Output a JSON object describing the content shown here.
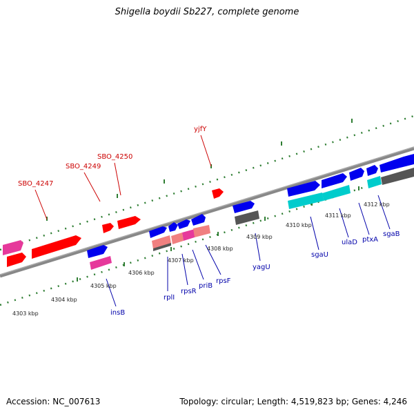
{
  "title": "Shigella boydii Sb227, complete genome",
  "accession_text": "Accession: NC_007613",
  "topology_text": "Topology: circular; Length: 4,519,823 bp; Genes: 4,246",
  "colors": {
    "backbone": "#888888",
    "tick": "#2e7d32",
    "label_blue": "#0000aa",
    "label_red": "#cc0000"
  },
  "kbp_ticks": [
    "4303 kbp",
    "4304 kbp",
    "4305 kbp",
    "4306 kbp",
    "4307 kbp",
    "4308 kbp",
    "4309 kbp",
    "4310 kbp",
    "4311 kbp",
    "4312 kbp"
  ],
  "forward_gene_labels": [
    "SBO_4247",
    "SBO_4249",
    "SBO_4250",
    "yjfY"
  ],
  "reverse_gene_labels": [
    "insB",
    "rplI",
    "rpsR",
    "priB",
    "rpsF",
    "yagU",
    "sgaU",
    "ulaD",
    "ptxA",
    "sgaB"
  ]
}
